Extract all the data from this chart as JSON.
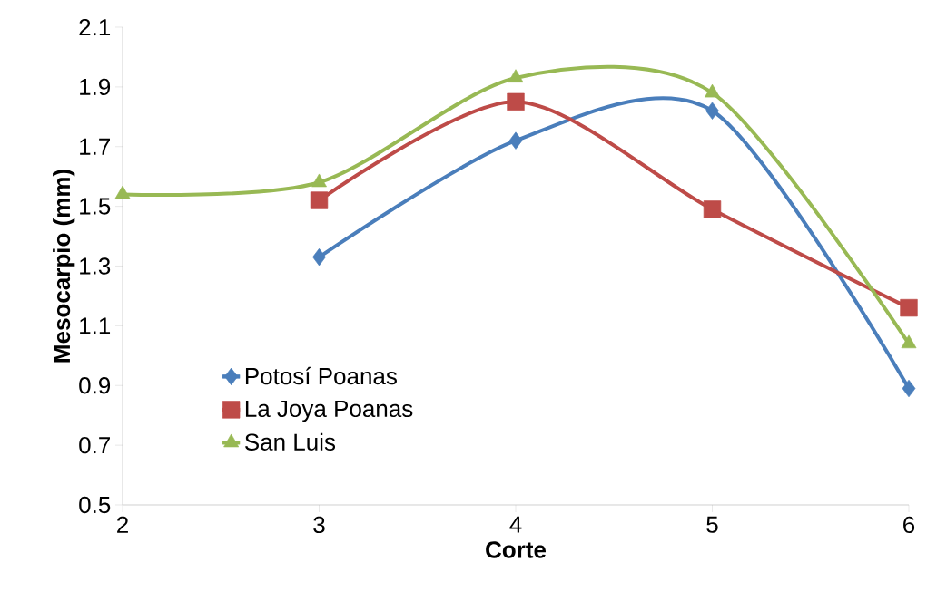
{
  "chart_data": {
    "type": "line",
    "xlabel": "Corte",
    "ylabel": "Mesocarpio (mm)",
    "xlim": [
      2,
      6
    ],
    "xticks": [
      2,
      3,
      4,
      5,
      6
    ],
    "ylim": [
      0.5,
      2.1
    ],
    "yticks": [
      0.5,
      0.7,
      0.9,
      1.1,
      1.3,
      1.5,
      1.7,
      1.9,
      2.1
    ],
    "grid": false,
    "legend": "bottom left",
    "line_style": "solid",
    "series": [
      {
        "name": "Potosí Poanas",
        "color": "#4a7ebb",
        "marker": "diamond",
        "x": [
          3,
          4,
          5,
          6
        ],
        "values": [
          1.33,
          1.72,
          1.82,
          0.89
        ]
      },
      {
        "name": "La Joya Poanas",
        "color": "#be4b48",
        "marker": "square",
        "x": [
          3,
          4,
          5,
          6
        ],
        "values": [
          1.52,
          1.85,
          1.49,
          1.16
        ]
      },
      {
        "name": "San Luis",
        "color": "#98b954",
        "marker": "triangle",
        "x": [
          2,
          3,
          4,
          5,
          6
        ],
        "values": [
          1.54,
          1.58,
          1.93,
          1.88,
          1.04
        ]
      }
    ]
  }
}
